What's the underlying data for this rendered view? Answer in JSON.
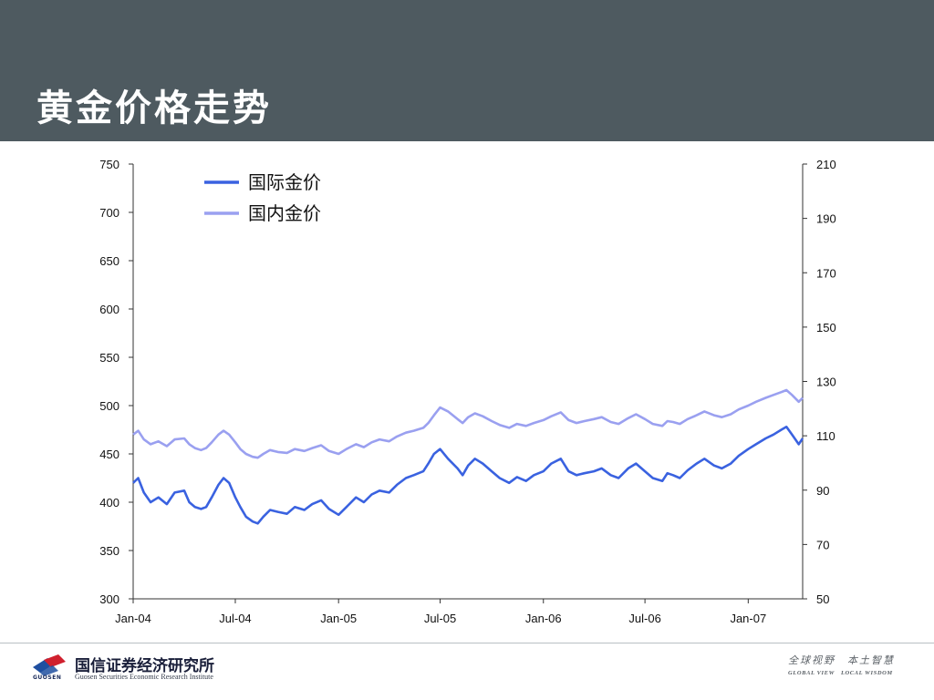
{
  "page": {
    "title": "黄金价格走势"
  },
  "footer": {
    "org_name": "国信证券经济研究所",
    "org_sub": "Guosen Securities Economic Research Institute",
    "logo_text": "GUOSEN",
    "motto_cn": "全球视野　本土智慧",
    "motto_en": "GLOBAL VIEW　LOCAL WISDOM",
    "colors": {
      "logo_blue": "#1f4fa0",
      "logo_red": "#d0202e"
    }
  },
  "chart_data": {
    "type": "line",
    "title": "",
    "xlabel": "",
    "ylabel_left": "",
    "ylabel_right": "",
    "ylim_left": [
      300,
      750
    ],
    "ylim_right": [
      50,
      210
    ],
    "yticks_left": [
      300,
      350,
      400,
      450,
      500,
      550,
      600,
      650,
      700,
      750
    ],
    "yticks_right": [
      50,
      70,
      90,
      110,
      130,
      150,
      170,
      190,
      210
    ],
    "x_range": [
      "2004-01-01",
      "2007-04-08"
    ],
    "x_ticks": [
      {
        "date": "2004-01-01",
        "label": "Jan-04"
      },
      {
        "date": "2004-07-01",
        "label": "Jul-04"
      },
      {
        "date": "2005-01-01",
        "label": "Jan-05"
      },
      {
        "date": "2005-07-01",
        "label": "Jul-05"
      },
      {
        "date": "2006-01-01",
        "label": "Jan-06"
      },
      {
        "date": "2006-07-01",
        "label": "Jul-06"
      },
      {
        "date": "2007-01-01",
        "label": "Jan-07"
      }
    ],
    "grid": false,
    "legend_position": "top-left",
    "series": [
      {
        "name": "国际金价",
        "axis": "left",
        "color": "#3a62e0",
        "points": [
          [
            "2004-01-01",
            420
          ],
          [
            "2004-01-10",
            425
          ],
          [
            "2004-01-20",
            410
          ],
          [
            "2004-02-01",
            400
          ],
          [
            "2004-02-15",
            405
          ],
          [
            "2004-03-01",
            398
          ],
          [
            "2004-03-15",
            410
          ],
          [
            "2004-04-01",
            412
          ],
          [
            "2004-04-10",
            400
          ],
          [
            "2004-04-20",
            395
          ],
          [
            "2004-05-01",
            393
          ],
          [
            "2004-05-10",
            395
          ],
          [
            "2004-05-20",
            405
          ],
          [
            "2004-06-01",
            418
          ],
          [
            "2004-06-10",
            425
          ],
          [
            "2004-06-20",
            420
          ],
          [
            "2004-07-01",
            405
          ],
          [
            "2004-07-10",
            395
          ],
          [
            "2004-07-20",
            385
          ],
          [
            "2004-08-01",
            380
          ],
          [
            "2004-08-10",
            378
          ],
          [
            "2004-08-20",
            385
          ],
          [
            "2004-09-01",
            392
          ],
          [
            "2004-09-15",
            390
          ],
          [
            "2004-10-01",
            388
          ],
          [
            "2004-10-15",
            395
          ],
          [
            "2004-11-01",
            392
          ],
          [
            "2004-11-15",
            398
          ],
          [
            "2004-12-01",
            402
          ],
          [
            "2004-12-15",
            393
          ],
          [
            "2005-01-01",
            387
          ],
          [
            "2005-01-15",
            395
          ],
          [
            "2005-02-01",
            405
          ],
          [
            "2005-02-15",
            400
          ],
          [
            "2005-03-01",
            408
          ],
          [
            "2005-03-15",
            412
          ],
          [
            "2005-04-01",
            410
          ],
          [
            "2005-04-15",
            418
          ],
          [
            "2005-05-01",
            425
          ],
          [
            "2005-05-15",
            428
          ],
          [
            "2005-06-01",
            432
          ],
          [
            "2005-06-10",
            440
          ],
          [
            "2005-06-20",
            450
          ],
          [
            "2005-07-01",
            455
          ],
          [
            "2005-07-15",
            445
          ],
          [
            "2005-08-01",
            435
          ],
          [
            "2005-08-10",
            428
          ],
          [
            "2005-08-20",
            438
          ],
          [
            "2005-09-01",
            445
          ],
          [
            "2005-09-15",
            440
          ],
          [
            "2005-10-01",
            432
          ],
          [
            "2005-10-15",
            425
          ],
          [
            "2005-11-01",
            420
          ],
          [
            "2005-11-15",
            426
          ],
          [
            "2005-12-01",
            422
          ],
          [
            "2005-12-15",
            428
          ],
          [
            "2006-01-01",
            432
          ],
          [
            "2006-01-15",
            440
          ],
          [
            "2006-02-01",
            445
          ],
          [
            "2006-02-15",
            432
          ],
          [
            "2006-03-01",
            428
          ],
          [
            "2006-03-15",
            430
          ],
          [
            "2006-04-01",
            432
          ],
          [
            "2006-04-15",
            435
          ],
          [
            "2006-05-01",
            428
          ],
          [
            "2006-05-15",
            425
          ],
          [
            "2006-06-01",
            435
          ],
          [
            "2006-06-15",
            440
          ],
          [
            "2006-07-01",
            432
          ],
          [
            "2006-07-15",
            425
          ],
          [
            "2006-08-01",
            422
          ],
          [
            "2006-08-10",
            430
          ],
          [
            "2006-08-20",
            428
          ],
          [
            "2006-09-01",
            425
          ],
          [
            "2006-09-15",
            433
          ],
          [
            "2006-10-01",
            440
          ],
          [
            "2006-10-15",
            445
          ],
          [
            "2006-11-01",
            438
          ],
          [
            "2006-11-15",
            435
          ],
          [
            "2006-12-01",
            440
          ],
          [
            "2006-12-15",
            448
          ],
          [
            "2007-01-01",
            455
          ],
          [
            "2007-01-15",
            460
          ],
          [
            "2007-02-01",
            466
          ],
          [
            "2007-02-15",
            470
          ],
          [
            "2007-03-01",
            475
          ],
          [
            "2007-03-10",
            478
          ],
          [
            "2007-03-20",
            470
          ],
          [
            "2007-04-01",
            460
          ],
          [
            "2007-04-08",
            466
          ]
        ]
      },
      {
        "name": "国内金价",
        "axis": "left",
        "color": "#9aa0f0",
        "points": [
          [
            "2004-01-01",
            470
          ],
          [
            "2004-01-10",
            474
          ],
          [
            "2004-01-20",
            465
          ],
          [
            "2004-02-01",
            460
          ],
          [
            "2004-02-15",
            463
          ],
          [
            "2004-03-01",
            458
          ],
          [
            "2004-03-15",
            465
          ],
          [
            "2004-04-01",
            466
          ],
          [
            "2004-04-10",
            460
          ],
          [
            "2004-04-20",
            456
          ],
          [
            "2004-05-01",
            454
          ],
          [
            "2004-05-10",
            456
          ],
          [
            "2004-05-20",
            462
          ],
          [
            "2004-06-01",
            470
          ],
          [
            "2004-06-10",
            474
          ],
          [
            "2004-06-20",
            470
          ],
          [
            "2004-07-01",
            462
          ],
          [
            "2004-07-10",
            455
          ],
          [
            "2004-07-20",
            450
          ],
          [
            "2004-08-01",
            447
          ],
          [
            "2004-08-10",
            446
          ],
          [
            "2004-08-20",
            450
          ],
          [
            "2004-09-01",
            454
          ],
          [
            "2004-09-15",
            452
          ],
          [
            "2004-10-01",
            451
          ],
          [
            "2004-10-15",
            455
          ],
          [
            "2004-11-01",
            453
          ],
          [
            "2004-11-15",
            456
          ],
          [
            "2004-12-01",
            459
          ],
          [
            "2004-12-15",
            453
          ],
          [
            "2005-01-01",
            450
          ],
          [
            "2005-01-15",
            455
          ],
          [
            "2005-02-01",
            460
          ],
          [
            "2005-02-15",
            457
          ],
          [
            "2005-03-01",
            462
          ],
          [
            "2005-03-15",
            465
          ],
          [
            "2005-04-01",
            463
          ],
          [
            "2005-04-15",
            468
          ],
          [
            "2005-05-01",
            472
          ],
          [
            "2005-05-15",
            474
          ],
          [
            "2005-06-01",
            477
          ],
          [
            "2005-06-10",
            482
          ],
          [
            "2005-06-20",
            490
          ],
          [
            "2005-07-01",
            498
          ],
          [
            "2005-07-15",
            494
          ],
          [
            "2005-08-01",
            486
          ],
          [
            "2005-08-10",
            482
          ],
          [
            "2005-08-20",
            488
          ],
          [
            "2005-09-01",
            492
          ],
          [
            "2005-09-15",
            489
          ],
          [
            "2005-10-01",
            484
          ],
          [
            "2005-10-15",
            480
          ],
          [
            "2005-11-01",
            477
          ],
          [
            "2005-11-15",
            481
          ],
          [
            "2005-12-01",
            479
          ],
          [
            "2005-12-15",
            482
          ],
          [
            "2006-01-01",
            485
          ],
          [
            "2006-01-15",
            489
          ],
          [
            "2006-02-01",
            493
          ],
          [
            "2006-02-15",
            485
          ],
          [
            "2006-03-01",
            482
          ],
          [
            "2006-03-15",
            484
          ],
          [
            "2006-04-01",
            486
          ],
          [
            "2006-04-15",
            488
          ],
          [
            "2006-05-01",
            483
          ],
          [
            "2006-05-15",
            481
          ],
          [
            "2006-06-01",
            487
          ],
          [
            "2006-06-15",
            491
          ],
          [
            "2006-07-01",
            486
          ],
          [
            "2006-07-15",
            481
          ],
          [
            "2006-08-01",
            479
          ],
          [
            "2006-08-10",
            484
          ],
          [
            "2006-08-20",
            483
          ],
          [
            "2006-09-01",
            481
          ],
          [
            "2006-09-15",
            486
          ],
          [
            "2006-10-01",
            490
          ],
          [
            "2006-10-15",
            494
          ],
          [
            "2006-11-01",
            490
          ],
          [
            "2006-11-15",
            488
          ],
          [
            "2006-12-01",
            491
          ],
          [
            "2006-12-15",
            496
          ],
          [
            "2007-01-01",
            500
          ],
          [
            "2007-01-15",
            504
          ],
          [
            "2007-02-01",
            508
          ],
          [
            "2007-02-15",
            511
          ],
          [
            "2007-03-01",
            514
          ],
          [
            "2007-03-10",
            516
          ],
          [
            "2007-03-20",
            511
          ],
          [
            "2007-04-01",
            504
          ],
          [
            "2007-04-08",
            508
          ]
        ]
      }
    ]
  }
}
